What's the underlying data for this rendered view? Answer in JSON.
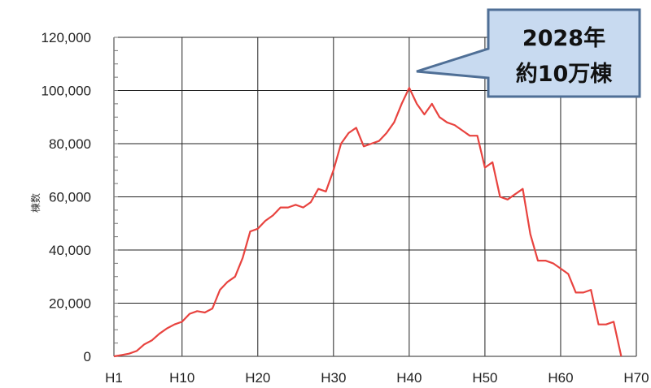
{
  "chart_data": {
    "type": "line",
    "ylabel": "棟数",
    "ylim": [
      0,
      120000
    ],
    "xlim": [
      1,
      70
    ],
    "grid": true,
    "y_ticks": [
      "0",
      "20,000",
      "40,000",
      "60,000",
      "80,000",
      "100,000",
      "120,000"
    ],
    "x_ticks": [
      "H1",
      "H10",
      "H20",
      "H30",
      "H40",
      "H50",
      "H60",
      "H70"
    ],
    "x_tick_values": [
      1,
      10,
      20,
      30,
      40,
      50,
      60,
      70
    ],
    "line_color": "#e8433f",
    "series": [
      {
        "name": "",
        "x": [
          1,
          2,
          3,
          4,
          5,
          6,
          7,
          8,
          9,
          10,
          11,
          12,
          13,
          14,
          15,
          16,
          17,
          18,
          19,
          20,
          21,
          22,
          23,
          24,
          25,
          26,
          27,
          28,
          29,
          30,
          31,
          32,
          33,
          34,
          35,
          36,
          37,
          38,
          39,
          40,
          41,
          42,
          43,
          44,
          45,
          46,
          47,
          48,
          49,
          50,
          51,
          52,
          53,
          54,
          55,
          56,
          57,
          58,
          59,
          60,
          61,
          62,
          63,
          64,
          65,
          66,
          67,
          68
        ],
        "values": [
          0,
          500,
          1000,
          2000,
          4500,
          6000,
          8500,
          10500,
          12000,
          13000,
          16000,
          17000,
          16500,
          18000,
          25000,
          28000,
          30000,
          37000,
          47000,
          48000,
          51000,
          53000,
          56000,
          56000,
          57000,
          56000,
          58000,
          63000,
          62000,
          70000,
          80000,
          84000,
          86000,
          79000,
          80000,
          81000,
          84000,
          88000,
          95000,
          101000,
          95000,
          91000,
          95000,
          90000,
          88000,
          87000,
          85000,
          83000,
          83000,
          71000,
          73000,
          60000,
          59000,
          61000,
          63000,
          46000,
          36000,
          36000,
          35000,
          33000,
          31000,
          24000,
          24000,
          25000,
          12000,
          12000,
          13000,
          0
        ]
      }
    ],
    "annotations": [
      {
        "text_lines": [
          "2028年",
          "約10万棟"
        ],
        "points_to_x": 40,
        "points_to_y": 101000
      }
    ]
  },
  "colors": {
    "callout_fill": "#c8daf0",
    "callout_border": "#4f6f96",
    "grid": "#222222"
  }
}
